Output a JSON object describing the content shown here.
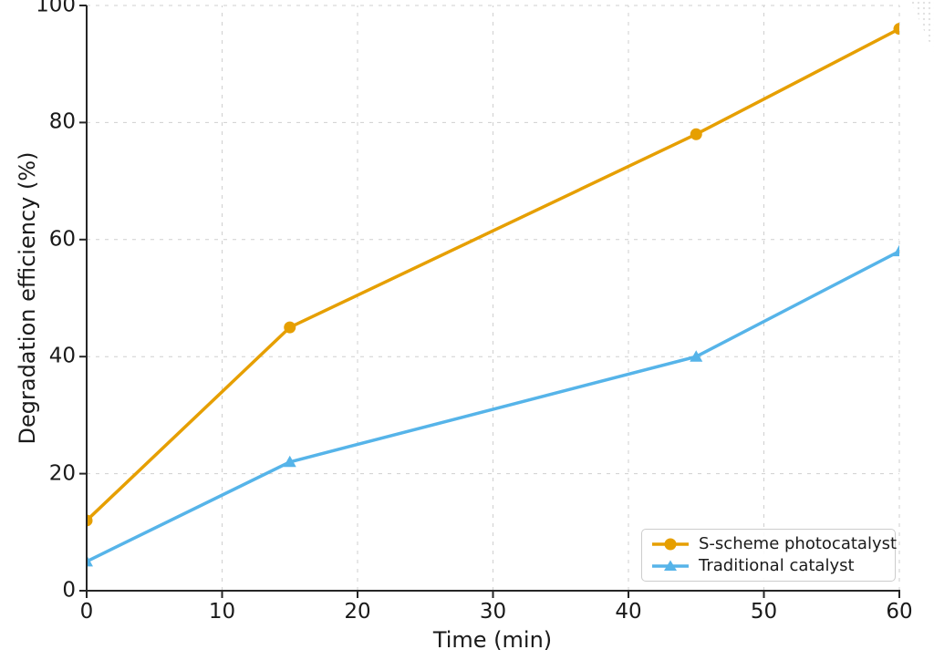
{
  "chart_data": {
    "type": "line",
    "xlabel": "Time (min)",
    "ylabel": "Degradation efficiency (%)",
    "x": [
      0,
      15,
      45,
      60
    ],
    "series": [
      {
        "name": "S-scheme photocatalyst",
        "color": "#E69F00",
        "marker": "circle",
        "values": [
          12,
          45,
          78,
          96
        ]
      },
      {
        "name": "Traditional catalyst",
        "color": "#56B4E9",
        "marker": "triangle",
        "values": [
          5,
          22,
          40,
          58
        ]
      }
    ],
    "xlim": [
      0,
      60
    ],
    "ylim": [
      0,
      100
    ],
    "xticks": [
      0,
      10,
      20,
      30,
      40,
      50,
      60
    ],
    "yticks": [
      0,
      20,
      40,
      60,
      80,
      100
    ],
    "grid": true,
    "grid_style": "dashed",
    "legend_position": "lower right"
  },
  "colors": {
    "grid": "#cfcfcf",
    "spine": "#262626",
    "text": "#1a1a1a",
    "background": "#ffffff",
    "legend_border": "#cccccc"
  }
}
